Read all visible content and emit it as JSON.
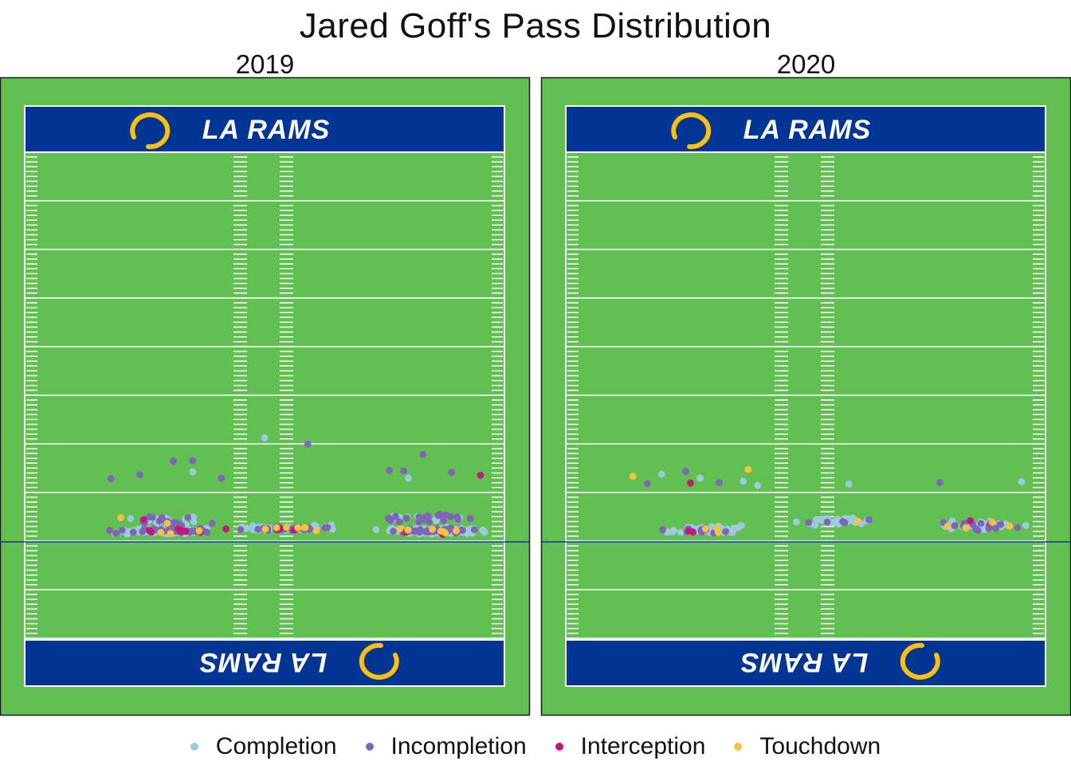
{
  "chart_data": {
    "type": "scatter",
    "title": "Jared Goff's Pass Distribution",
    "legend_position": "bottom",
    "legend": [
      {
        "name": "Completion",
        "color": "#9ecae1"
      },
      {
        "name": "Incompletion",
        "color": "#8064b8"
      },
      {
        "name": "Interception",
        "color": "#c2187a"
      },
      {
        "name": "Touchdown",
        "color": "#f7c23e"
      }
    ],
    "endzone_text": "LA RAMS",
    "colors": {
      "field": "#62bf52",
      "endzone": "#003594",
      "line_of_scrimmage": "#1b2fb4",
      "logo_gold": "#ffc107"
    },
    "panels": [
      {
        "label": "2019",
        "seed": 11,
        "clusters": [
          {
            "cx": 0.29,
            "cy": 0.22,
            "sx": 0.14,
            "sy": 0.08,
            "n": 135,
            "cmp": 0.66,
            "int": 0.03,
            "td": 0.04
          },
          {
            "cx": 0.29,
            "cy": 0.45,
            "sx": 0.12,
            "sy": 0.14,
            "n": 38,
            "cmp": 0.55,
            "int": 0.03,
            "td": 0.04
          },
          {
            "cx": 0.54,
            "cy": 0.28,
            "sx": 0.16,
            "sy": 0.08,
            "n": 95,
            "cmp": 0.65,
            "int": 0.02,
            "td": 0.06
          },
          {
            "cx": 0.85,
            "cy": 0.22,
            "sx": 0.14,
            "sy": 0.08,
            "n": 150,
            "cmp": 0.66,
            "int": 0.04,
            "td": 0.05
          },
          {
            "cx": 0.85,
            "cy": 0.48,
            "sx": 0.12,
            "sy": 0.12,
            "n": 42,
            "cmp": 0.55,
            "int": 0.05,
            "td": 0.03
          }
        ],
        "points": [
          {
            "x": 0.5,
            "y": 2.14,
            "c": 0
          },
          {
            "x": 0.59,
            "y": 2.01,
            "c": 1
          },
          {
            "x": 0.83,
            "y": 1.8,
            "c": 1
          },
          {
            "x": 0.31,
            "y": 1.66,
            "c": 1
          },
          {
            "x": 0.35,
            "y": 1.67,
            "c": 1
          },
          {
            "x": 0.35,
            "y": 1.44,
            "c": 0
          },
          {
            "x": 0.24,
            "y": 1.38,
            "c": 1
          },
          {
            "x": 0.18,
            "y": 1.3,
            "c": 1
          },
          {
            "x": 0.41,
            "y": 1.31,
            "c": 1
          },
          {
            "x": 0.76,
            "y": 1.47,
            "c": 1
          },
          {
            "x": 0.79,
            "y": 1.46,
            "c": 1
          },
          {
            "x": 0.89,
            "y": 1.43,
            "c": 1
          },
          {
            "x": 0.95,
            "y": 1.37,
            "c": 2
          },
          {
            "x": 0.8,
            "y": 1.31,
            "c": 0
          }
        ]
      },
      {
        "label": "2020",
        "seed": 23,
        "clusters": [
          {
            "cx": 0.29,
            "cy": 0.25,
            "sx": 0.13,
            "sy": 0.12,
            "n": 55,
            "cmp": 0.72,
            "int": 0.03,
            "td": 0.04
          },
          {
            "cx": 0.57,
            "cy": 0.42,
            "sx": 0.12,
            "sy": 0.11,
            "n": 30,
            "cmp": 0.76,
            "int": 0.0,
            "td": 0.06
          },
          {
            "cx": 0.86,
            "cy": 0.33,
            "sx": 0.12,
            "sy": 0.14,
            "n": 50,
            "cmp": 0.7,
            "int": 0.03,
            "td": 0.05
          }
        ],
        "points": [
          {
            "x": 0.38,
            "y": 1.49,
            "c": 3
          },
          {
            "x": 0.25,
            "y": 1.45,
            "c": 1
          },
          {
            "x": 0.2,
            "y": 1.39,
            "c": 0
          },
          {
            "x": 0.14,
            "y": 1.35,
            "c": 3
          },
          {
            "x": 0.28,
            "y": 1.31,
            "c": 0
          },
          {
            "x": 0.37,
            "y": 1.25,
            "c": 0
          },
          {
            "x": 0.26,
            "y": 1.21,
            "c": 2
          },
          {
            "x": 0.32,
            "y": 1.22,
            "c": 1
          },
          {
            "x": 0.17,
            "y": 1.2,
            "c": 1
          },
          {
            "x": 0.59,
            "y": 1.19,
            "c": 0
          },
          {
            "x": 0.78,
            "y": 1.22,
            "c": 1
          },
          {
            "x": 0.95,
            "y": 1.24,
            "c": 0
          },
          {
            "x": 0.4,
            "y": 1.16,
            "c": 0
          }
        ]
      }
    ]
  }
}
